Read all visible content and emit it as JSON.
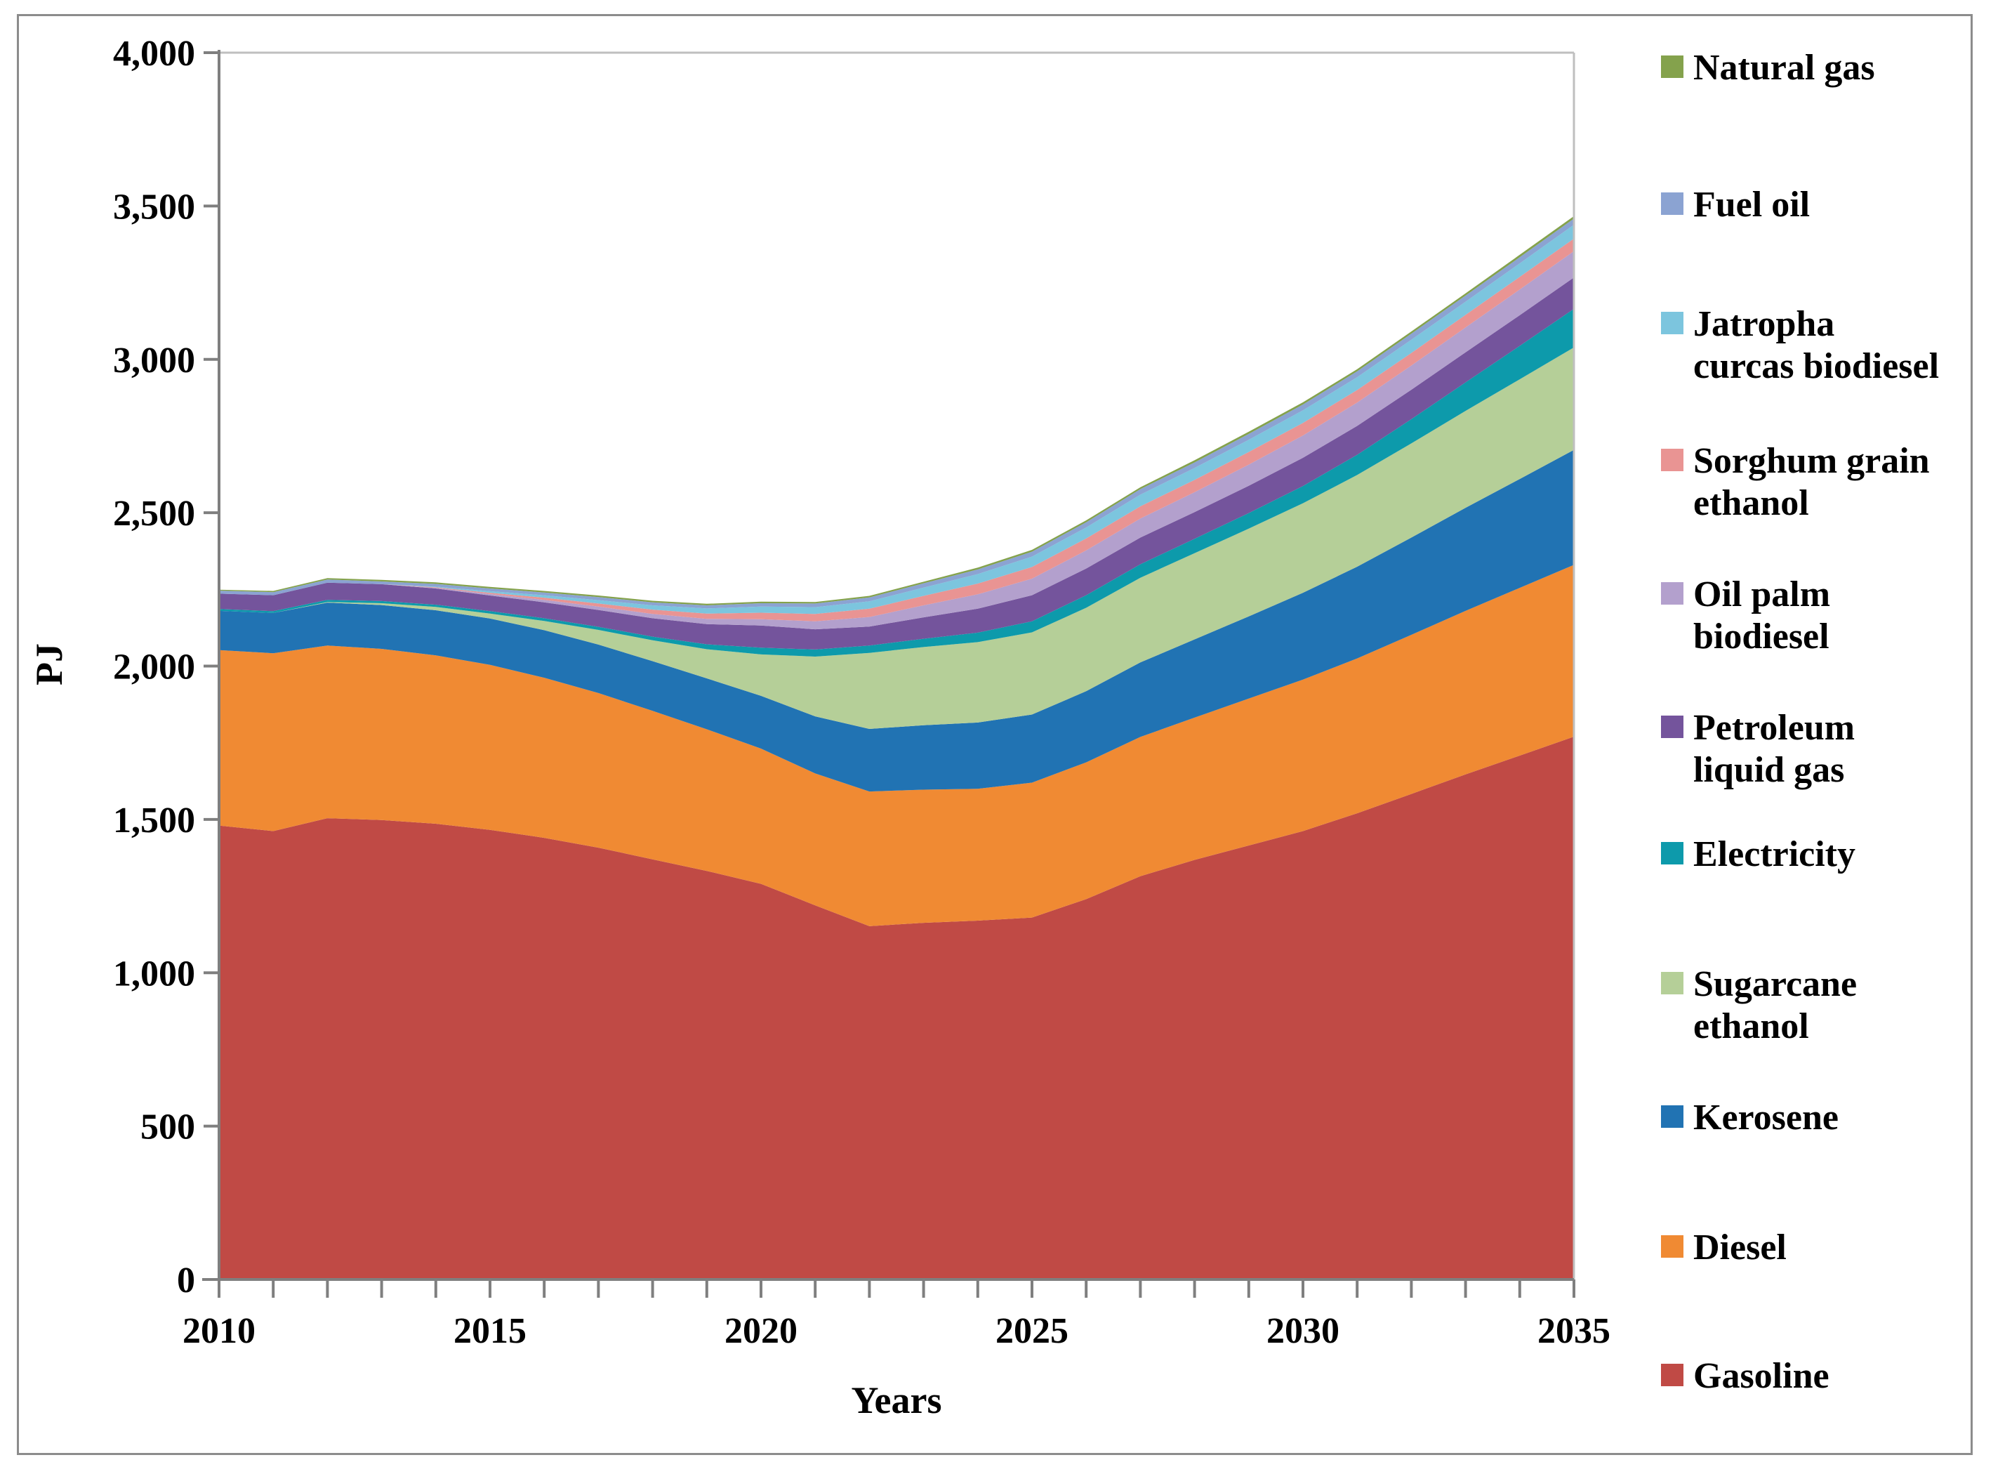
{
  "figure": {
    "title": "",
    "ylabel": "PJ",
    "xlabel": "Years"
  },
  "chart_data": {
    "type": "area",
    "stacked": true,
    "title": "",
    "xlabel": "Years",
    "ylabel": "PJ",
    "x": [
      2010,
      2011,
      2012,
      2013,
      2014,
      2015,
      2016,
      2017,
      2018,
      2019,
      2020,
      2021,
      2022,
      2023,
      2024,
      2025,
      2026,
      2027,
      2028,
      2029,
      2030,
      2031,
      2032,
      2033,
      2034,
      2035
    ],
    "xlim": [
      2010,
      2035
    ],
    "ylim": [
      0,
      4000
    ],
    "grid": false,
    "legend_position": "right",
    "y_ticks": [
      {
        "value": 0,
        "label": "0"
      },
      {
        "value": 500,
        "label": "500"
      },
      {
        "value": 1000,
        "label": "1,000"
      },
      {
        "value": 1500,
        "label": "1,500"
      },
      {
        "value": 2000,
        "label": "2,000"
      },
      {
        "value": 2500,
        "label": "2,500"
      },
      {
        "value": 3000,
        "label": "3,000"
      },
      {
        "value": 3500,
        "label": "3,500"
      },
      {
        "value": 4000,
        "label": "4,000"
      }
    ],
    "x_major_ticks": [
      {
        "value": 2010,
        "label": "2010"
      },
      {
        "value": 2015,
        "label": "2015"
      },
      {
        "value": 2020,
        "label": "2020"
      },
      {
        "value": 2025,
        "label": "2025"
      },
      {
        "value": 2030,
        "label": "2030"
      },
      {
        "value": 2035,
        "label": "2035"
      }
    ],
    "series": [
      {
        "name": "Gasoline",
        "legend_lines": [
          "Gasoline"
        ],
        "color": "#c04a45",
        "values": [
          1480,
          1462,
          1504,
          1498,
          1486,
          1466,
          1440,
          1408,
          1370,
          1332,
          1290,
          1220,
          1152,
          1163,
          1170,
          1180,
          1240,
          1315,
          1368,
          1415,
          1462,
          1520,
          1583,
          1647,
          1708,
          1770
        ]
      },
      {
        "name": "Diesel",
        "legend_lines": [
          "Diesel"
        ],
        "color": "#f08a33",
        "values": [
          572,
          580,
          563,
          558,
          549,
          538,
          522,
          504,
          484,
          462,
          441,
          430,
          439,
          434,
          430,
          440,
          446,
          454,
          464,
          479,
          494,
          505,
          519,
          533,
          547,
          560
        ]
      },
      {
        "name": "Kerosene",
        "legend_lines": [
          "Kerosene"
        ],
        "color": "#2173b3",
        "values": [
          128,
          131,
          140,
          143,
          147,
          151,
          155,
          158,
          162,
          166,
          172,
          186,
          204,
          210,
          216,
          222,
          232,
          243,
          255,
          268,
          283,
          299,
          317,
          336,
          355,
          375
        ]
      },
      {
        "name": "Sugarcane ethanol",
        "legend_lines": [
          "Sugarcane",
          "ethanol"
        ],
        "color": "#b5cf98",
        "values": [
          0,
          0,
          2,
          6,
          11,
          16,
          30,
          48,
          68,
          95,
          135,
          195,
          248,
          255,
          262,
          268,
          272,
          276,
          281,
          286,
          292,
          299,
          307,
          316,
          325,
          334
        ]
      },
      {
        "name": "Electricity",
        "legend_lines": [
          "Electricity"
        ],
        "color": "#0d9aab",
        "values": [
          6,
          6,
          7,
          7,
          7,
          8,
          9,
          10,
          12,
          16,
          22,
          23,
          24,
          27,
          31,
          36,
          41,
          44,
          47,
          51,
          56,
          66,
          79,
          93,
          109,
          126
        ]
      },
      {
        "name": "Petroleum liquid gas",
        "legend_lines": [
          "Petroleum",
          "liquid gas"
        ],
        "color": "#74549c",
        "values": [
          50,
          52,
          56,
          55,
          53,
          51,
          52,
          55,
          60,
          66,
          72,
          66,
          62,
          70,
          78,
          85,
          87,
          87,
          87,
          89,
          92,
          94,
          96,
          98,
          100,
          102
        ]
      },
      {
        "name": "Oil palm biodiesel",
        "legend_lines": [
          "Oil palm",
          "biodiesel"
        ],
        "color": "#b3a0cd",
        "values": [
          0,
          0,
          0,
          0,
          2,
          5,
          8,
          11,
          14,
          17,
          21,
          26,
          31,
          39,
          47,
          54,
          59,
          62,
          65,
          69,
          73,
          76,
          79,
          81,
          84,
          86
        ]
      },
      {
        "name": "Sorghum grain ethanol",
        "legend_lines": [
          "Sorghum grain",
          "ethanol"
        ],
        "color": "#e99493",
        "values": [
          0,
          0,
          0,
          0,
          2,
          4,
          7,
          10,
          14,
          17,
          21,
          24,
          27,
          31,
          35,
          38,
          39,
          40,
          40,
          41,
          41,
          41,
          41,
          41,
          41,
          41
        ]
      },
      {
        "name": "Jatropha curcas biodiesel",
        "legend_lines": [
          "Jatropha",
          "curcas biodiesel"
        ],
        "color": "#7cc5de",
        "values": [
          0,
          0,
          0,
          0,
          2,
          5,
          8,
          11,
          14,
          17,
          20,
          22,
          24,
          27,
          31,
          34,
          36,
          38,
          39,
          40,
          41,
          42,
          43,
          43,
          44,
          45
        ]
      },
      {
        "name": "Fuel oil",
        "legend_lines": [
          "Fuel oil"
        ],
        "color": "#8ba3d2",
        "values": [
          10,
          10,
          10,
          9,
          9,
          9,
          9,
          10,
          10,
          10,
          11,
          12,
          13,
          14,
          15,
          16,
          17,
          18,
          18,
          19,
          19,
          19,
          20,
          20,
          20,
          20
        ]
      },
      {
        "name": "Natural gas",
        "legend_lines": [
          "Natural gas"
        ],
        "color": "#84a24c",
        "values": [
          3,
          4,
          5,
          5,
          5,
          5,
          5,
          5,
          5,
          5,
          5,
          5,
          5,
          5,
          6,
          6,
          6,
          6,
          7,
          7,
          7,
          7,
          7,
          7,
          8,
          8
        ]
      }
    ]
  }
}
